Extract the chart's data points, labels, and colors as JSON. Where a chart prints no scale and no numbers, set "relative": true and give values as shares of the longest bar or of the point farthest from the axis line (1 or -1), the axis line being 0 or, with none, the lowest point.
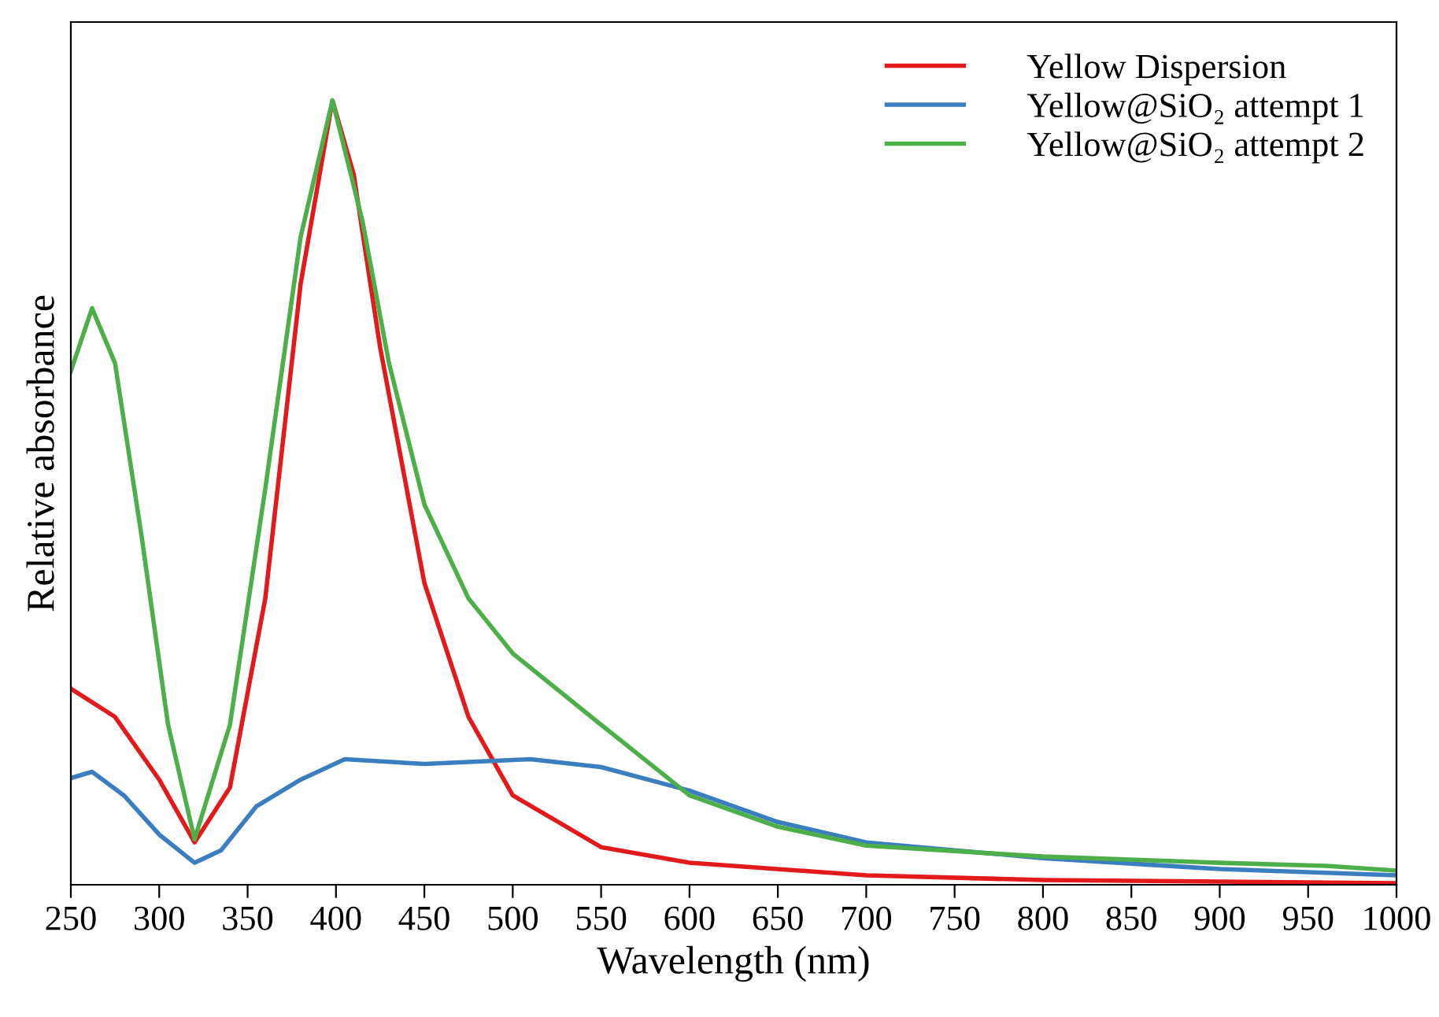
{
  "chart_data": {
    "type": "line",
    "relative": true,
    "xlabel": "Wavelength (nm)",
    "ylabel": "Relative absorbance",
    "xlim": [
      250,
      1000
    ],
    "xticks": [
      250,
      300,
      350,
      400,
      450,
      500,
      550,
      600,
      650,
      700,
      750,
      800,
      850,
      900,
      950,
      1000
    ],
    "legend": "top right",
    "grid": false,
    "marker": "none",
    "line_style": "solid",
    "series": [
      {
        "name": "Yellow Dispersion",
        "color": "#e31a1c",
        "x": [
          250,
          275,
          300,
          320,
          340,
          360,
          380,
          398,
          410,
          425,
          450,
          475,
          500,
          550,
          600,
          700,
          800,
          1000
        ],
        "values": [
          0.25,
          0.214,
          0.134,
          0.054,
          0.124,
          0.365,
          0.766,
          1.0,
          0.906,
          0.685,
          0.385,
          0.214,
          0.114,
          0.048,
          0.028,
          0.012,
          0.006,
          0.002
        ]
      },
      {
        "name": "Yellow@SiO₂ attempt 1",
        "color": "#3a7ebf",
        "x": [
          250,
          262,
          280,
          300,
          320,
          335,
          355,
          380,
          405,
          450,
          510,
          550,
          600,
          650,
          700,
          800,
          900,
          1000
        ],
        "values": [
          0.136,
          0.144,
          0.114,
          0.064,
          0.028,
          0.044,
          0.1,
          0.134,
          0.16,
          0.154,
          0.16,
          0.15,
          0.12,
          0.08,
          0.054,
          0.034,
          0.02,
          0.012
        ]
      },
      {
        "name": "Yellow@SiO₂ attempt 2",
        "color": "#4daf4a",
        "x": [
          250,
          262,
          275,
          290,
          305,
          320,
          340,
          360,
          380,
          398,
          415,
          430,
          450,
          475,
          500,
          550,
          600,
          650,
          700,
          800,
          900,
          960,
          1000
        ],
        "values": [
          0.655,
          0.735,
          0.665,
          0.445,
          0.204,
          0.058,
          0.204,
          0.505,
          0.826,
          1.0,
          0.846,
          0.665,
          0.485,
          0.365,
          0.295,
          0.204,
          0.114,
          0.074,
          0.05,
          0.036,
          0.028,
          0.024,
          0.018
        ]
      }
    ]
  }
}
